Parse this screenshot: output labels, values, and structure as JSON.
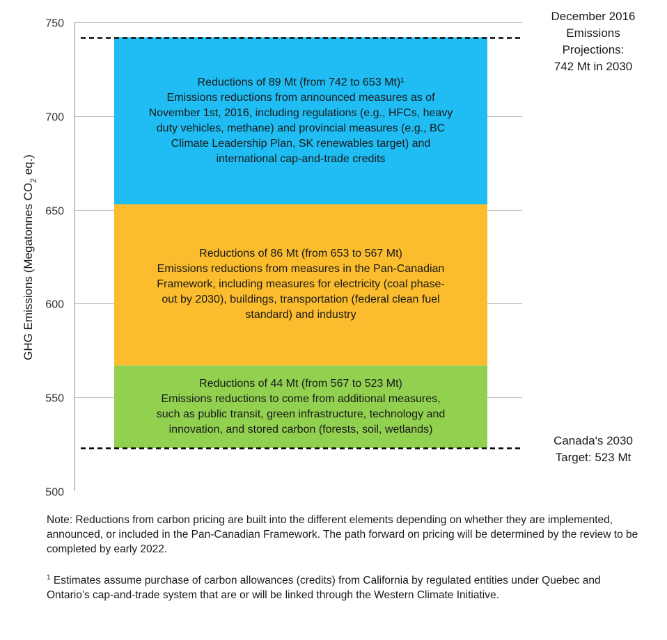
{
  "chart_data": {
    "type": "bar",
    "stacked": true,
    "ylabel": "GHG Emissions (Megatonnes CO2 eq.)",
    "ylabel_parts": {
      "before": "GHG Emissions (Megatonnes CO",
      "sub": "2",
      "after": " eq.)"
    },
    "ylim": [
      500,
      750
    ],
    "yticks": [
      500,
      550,
      600,
      650,
      700,
      750
    ],
    "grid": true,
    "segments": [
      {
        "bottom": 523,
        "top": 567,
        "value": 44,
        "color": "#92d050",
        "lines": [
          "Reductions of 44 Mt (from  567 to 523 Mt)",
          "Emissions reductions to come from additional measures,",
          "such as public transit, green infrastructure, technology and",
          "innovation, and stored carbon (forests,  soil, wetlands)"
        ]
      },
      {
        "bottom": 567,
        "top": 653,
        "value": 86,
        "color": "#fbbc2e",
        "lines": [
          "Reductions of 86 Mt (from 653 to 567 Mt)",
          "Emissions reductions from measures in the Pan-Canadian",
          "Framework, including measures for electricity (coal phase-",
          "out by 2030), buildings, transportation (federal clean fuel",
          "standard) and industry"
        ]
      },
      {
        "bottom": 653,
        "top": 742,
        "value": 89,
        "color": "#1fbdf3",
        "lines": [
          "Reductions of 89 Mt (from 742 to 653 Mt)¹",
          "Emissions reductions from announced measures as of",
          "November 1st, 2016, including regulations (e.g., HFCs, heavy",
          "duty vehicles, methane) and provincial measures (e.g., BC",
          "Climate  Leadership Plan, SK renewables target) and",
          "international cap-and-trade credits"
        ]
      }
    ],
    "reference_lines": [
      {
        "value": 742,
        "style": "dashed",
        "label_lines": [
          "December 2016",
          "Emissions",
          "Projections:",
          "742 Mt in 2030"
        ]
      },
      {
        "value": 523,
        "style": "dashed",
        "label_lines": [
          "Canada's 2030",
          "Target: 523 Mt"
        ]
      }
    ]
  },
  "notes": {
    "note": "Note: Reductions from carbon pricing are built into the different elements depending on whether they are implemented, announced, or included in the Pan-Canadian Framework. The path forward on pricing will be determined by the review to be completed by early 2022.",
    "footnote_marker": "1",
    "footnote": "Estimates assume purchase of carbon allowances (credits) from California by regulated entities under Quebec and Ontario’s cap-and-trade system that are or will be linked through the Western Climate Initiative."
  }
}
